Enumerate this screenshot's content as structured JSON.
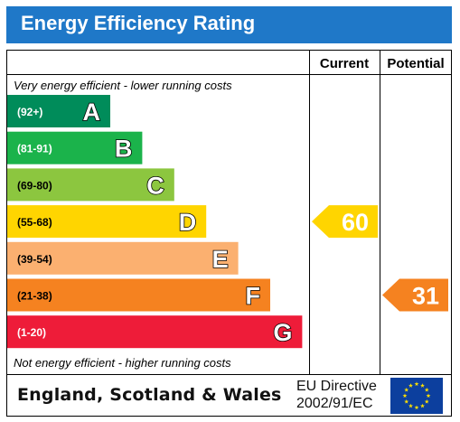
{
  "title": "Energy Efficiency Rating",
  "header": {
    "current_label": "Current",
    "potential_label": "Potential"
  },
  "top_caption": "Very energy efficient - lower running costs",
  "bottom_caption": "Not energy efficient - higher running costs",
  "footer": {
    "country": "England, Scotland & Wales",
    "directive_line1": "EU Directive",
    "directive_line2": "2002/91/EC",
    "flag_icon": "eu-flag-icon"
  },
  "colors": {
    "title_bar": "#1f78c8",
    "flag_blue": "#0c3f9e",
    "flag_star": "#ffe000"
  },
  "chart_data": {
    "type": "bar",
    "categories": [
      "A",
      "B",
      "C",
      "D",
      "E",
      "F",
      "G"
    ],
    "bands": [
      {
        "letter": "A",
        "range": "(92+)",
        "color": "#008c5a"
      },
      {
        "letter": "B",
        "range": "(81-91)",
        "color": "#1bb34b"
      },
      {
        "letter": "C",
        "range": "(69-80)",
        "color": "#8cc63f"
      },
      {
        "letter": "D",
        "range": "(55-68)",
        "color": "#ffd500"
      },
      {
        "letter": "E",
        "range": "(39-54)",
        "color": "#fbb070"
      },
      {
        "letter": "F",
        "range": "(21-38)",
        "color": "#f58220"
      },
      {
        "letter": "G",
        "range": "(1-20)",
        "color": "#ee1c39"
      }
    ],
    "current": {
      "value": 60,
      "band": "D",
      "color": "#ffd500"
    },
    "potential": {
      "value": 31,
      "band": "F",
      "color": "#f58220"
    }
  }
}
